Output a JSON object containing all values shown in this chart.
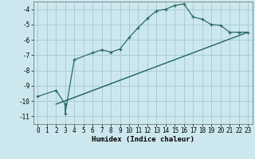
{
  "xlabel": "Humidex (Indice chaleur)",
  "bg_color": "#cce8ee",
  "grid_color": "#aacdd6",
  "line_color": "#2a6b60",
  "xlim": [
    -0.5,
    23.5
  ],
  "ylim": [
    -11.5,
    -3.5
  ],
  "yticks": [
    -11,
    -10,
    -9,
    -8,
    -7,
    -6,
    -5,
    -4
  ],
  "xticks": [
    0,
    1,
    2,
    3,
    4,
    5,
    6,
    7,
    8,
    9,
    10,
    11,
    12,
    13,
    14,
    15,
    16,
    17,
    18,
    19,
    20,
    21,
    22,
    23
  ],
  "curve1_x": [
    0,
    2,
    3,
    3,
    4,
    6,
    7,
    8,
    9,
    10,
    11,
    12,
    13,
    14,
    15,
    16,
    17,
    18,
    19,
    20,
    21,
    22,
    23
  ],
  "curve1_y": [
    -9.7,
    -9.3,
    -10.2,
    -10.8,
    -7.3,
    -6.85,
    -6.65,
    -6.8,
    -6.6,
    -5.85,
    -5.2,
    -4.6,
    -4.1,
    -4.0,
    -3.75,
    -3.65,
    -4.5,
    -4.65,
    -5.0,
    -5.05,
    -5.5,
    -5.5,
    -5.5
  ],
  "curve2_x": [
    2,
    3,
    23
  ],
  "curve2_y": [
    -10.2,
    -10.0,
    -5.5
  ],
  "curve3_x": [
    2,
    23
  ],
  "curve3_y": [
    -10.2,
    -5.5
  ],
  "xlabel_fontsize": 6.5,
  "tick_fontsize": 5.5
}
